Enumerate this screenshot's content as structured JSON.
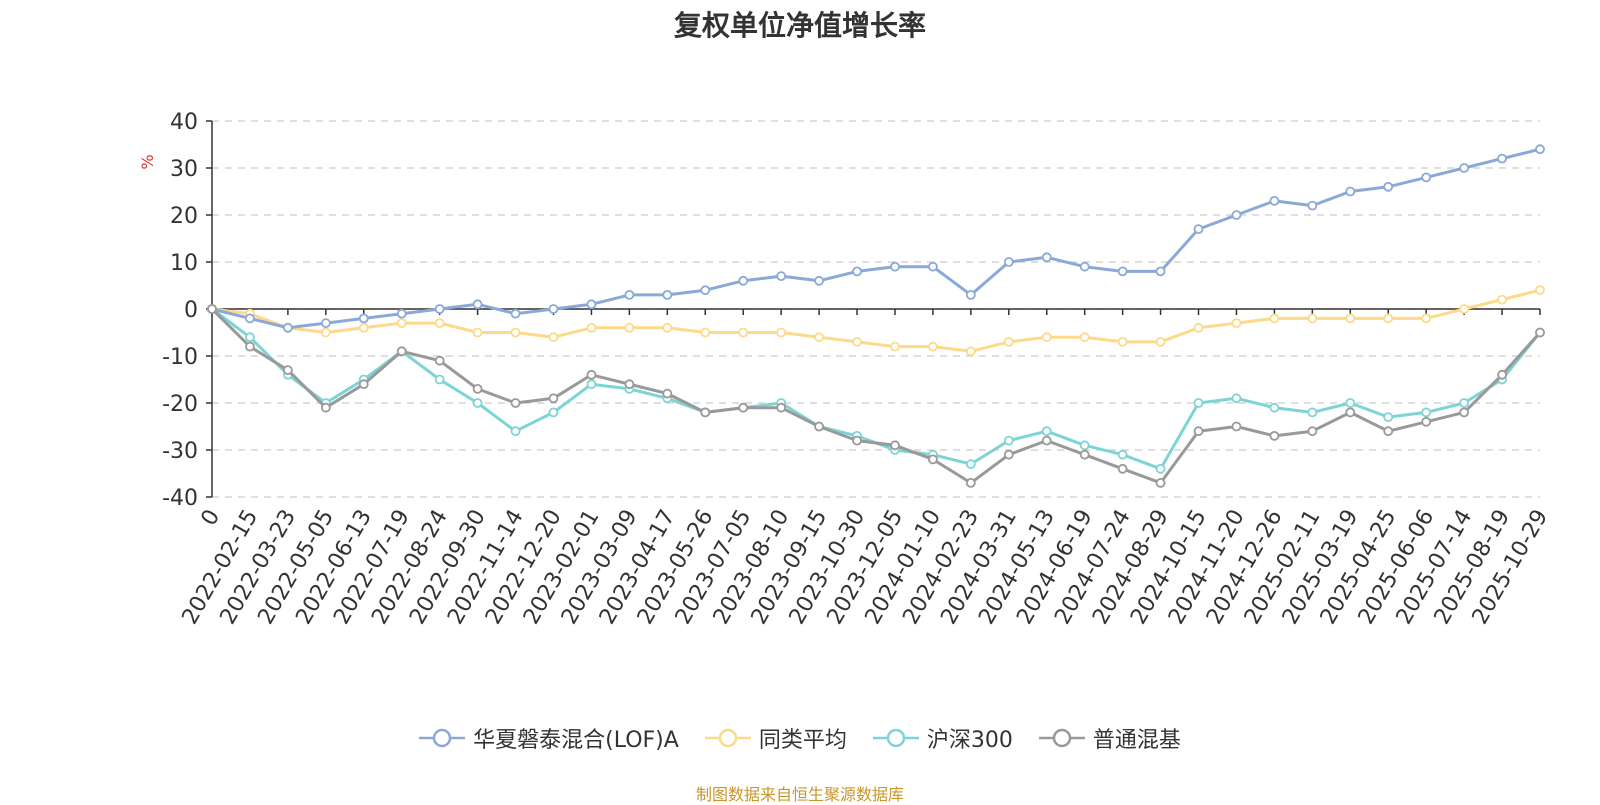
{
  "chart_data": {
    "type": "line",
    "title": "复权单位净值增长率",
    "ylabel": "%",
    "ylim": [
      -40,
      40
    ],
    "yticks": [
      40,
      30,
      20,
      10,
      0,
      -10,
      -20,
      -30,
      -40
    ],
    "xlabels": [
      "0",
      "2022-02-15",
      "2022-03-23",
      "2022-05-05",
      "2022-06-13",
      "2022-07-19",
      "2022-08-24",
      "2022-09-30",
      "2022-11-14",
      "2022-12-20",
      "2023-02-01",
      "2023-03-09",
      "2023-04-17",
      "2023-05-26",
      "2023-07-05",
      "2023-08-10",
      "2023-09-15",
      "2023-10-30",
      "2023-12-05",
      "2024-01-10",
      "2024-02-23",
      "2024-03-31",
      "2024-05-13",
      "2024-06-19",
      "2024-07-24",
      "2024-08-29",
      "2024-10-15",
      "2024-11-20",
      "2024-12-26",
      "2025-02-11",
      "2025-03-19",
      "2025-04-25",
      "2025-06-06",
      "2025-07-14",
      "2025-08-19",
      "2025-10-29"
    ],
    "grid": "horizontal-dashed",
    "legend_position": "bottom",
    "series": [
      {
        "name": "华夏磐泰混合(LOF)A",
        "color": "#8aa8d8",
        "values": [
          0,
          -2,
          -4,
          -3,
          -2,
          -1,
          0,
          1,
          -1,
          0,
          1,
          3,
          3,
          4,
          6,
          7,
          6,
          8,
          9,
          9,
          3,
          10,
          11,
          9,
          8,
          8,
          17,
          20,
          23,
          22,
          25,
          26,
          28,
          30,
          32,
          34
        ]
      },
      {
        "name": "同类平均",
        "color": "#fdd98a",
        "values": [
          0,
          -1,
          -4,
          -5,
          -4,
          -3,
          -3,
          -5,
          -5,
          -6,
          -4,
          -4,
          -4,
          -5,
          -5,
          -5,
          -6,
          -7,
          -8,
          -8,
          -9,
          -7,
          -6,
          -6,
          -7,
          -7,
          -4,
          -3,
          -2,
          -2,
          -2,
          -2,
          -2,
          0,
          2,
          4
        ]
      },
      {
        "name": "沪深300",
        "color": "#7dd4d4",
        "values": [
          0,
          -6,
          -14,
          -20,
          -15,
          -9,
          -15,
          -20,
          -26,
          -22,
          -16,
          -17,
          -19,
          -22,
          -21,
          -20,
          -25,
          -27,
          -30,
          -31,
          -33,
          -28,
          -26,
          -29,
          -31,
          -34,
          -20,
          -19,
          -21,
          -22,
          -20,
          -23,
          -22,
          -20,
          -15,
          -5
        ]
      },
      {
        "name": "普通混基",
        "color": "#999999",
        "values": [
          0,
          -8,
          -13,
          -21,
          -16,
          -9,
          -11,
          -17,
          -20,
          -19,
          -14,
          -16,
          -18,
          -22,
          -21,
          -21,
          -25,
          -28,
          -29,
          -32,
          -37,
          -31,
          -28,
          -31,
          -34,
          -37,
          -26,
          -25,
          -27,
          -26,
          -22,
          -26,
          -24,
          -22,
          -14,
          -5
        ]
      }
    ],
    "source": "制图数据来自恒生聚源数据库"
  }
}
